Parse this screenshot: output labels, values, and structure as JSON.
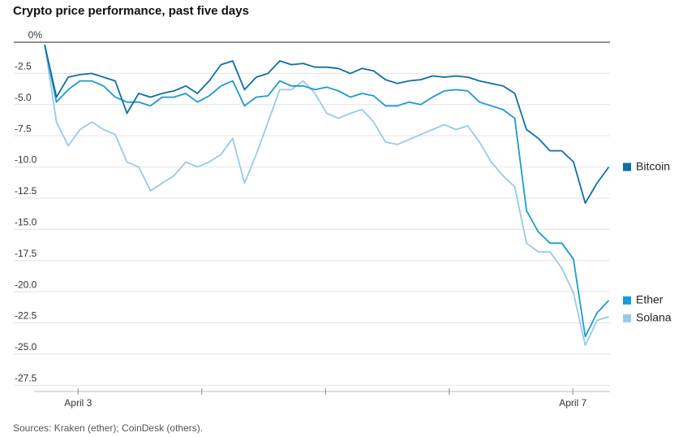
{
  "chart_data": {
    "type": "line",
    "title": "Crypto price performance, past five days",
    "source": "Sources: Kraken (ether); CoinDesk (others).",
    "x": [
      2.73,
      2.825,
      2.92,
      3.015,
      3.11,
      3.205,
      3.3,
      3.395,
      3.49,
      3.585,
      3.68,
      3.775,
      3.87,
      3.965,
      4.06,
      4.155,
      4.25,
      4.345,
      4.44,
      4.535,
      4.63,
      4.725,
      4.82,
      4.915,
      5.01,
      5.105,
      5.2,
      5.295,
      5.39,
      5.485,
      5.58,
      5.675,
      5.77,
      5.865,
      5.96,
      6.055,
      6.15,
      6.245,
      6.34,
      6.435,
      6.53,
      6.625,
      6.72,
      6.815,
      6.91,
      7.005,
      7.1,
      7.195,
      7.29
    ],
    "series": [
      {
        "name": "Bitcoin",
        "color": "#0f6fa3",
        "values": [
          -0.2,
          -4.4,
          -2.8,
          -2.6,
          -2.5,
          -2.8,
          -3.1,
          -5.7,
          -4.1,
          -4.4,
          -4.1,
          -3.9,
          -3.5,
          -4.1,
          -3.1,
          -1.8,
          -1.5,
          -3.8,
          -2.8,
          -2.5,
          -1.5,
          -1.8,
          -1.7,
          -2.0,
          -2.0,
          -2.1,
          -2.5,
          -2.1,
          -2.3,
          -3.0,
          -3.3,
          -3.1,
          -3.0,
          -2.7,
          -2.8,
          -2.7,
          -2.8,
          -3.1,
          -3.3,
          -3.5,
          -4.1,
          -7.0,
          -7.7,
          -8.7,
          -8.7,
          -9.6,
          -12.9,
          -11.3,
          -10.0
        ]
      },
      {
        "name": "Ether",
        "color": "#1a9ad6",
        "values": [
          -0.2,
          -4.8,
          -3.8,
          -3.1,
          -3.1,
          -3.5,
          -4.4,
          -4.8,
          -4.8,
          -5.1,
          -4.4,
          -4.4,
          -4.1,
          -4.8,
          -4.3,
          -3.5,
          -3.1,
          -5.1,
          -4.4,
          -4.3,
          -3.1,
          -3.5,
          -3.5,
          -3.8,
          -3.6,
          -3.9,
          -4.4,
          -4.1,
          -4.3,
          -5.1,
          -5.1,
          -4.8,
          -5.0,
          -4.4,
          -3.9,
          -3.8,
          -3.9,
          -4.8,
          -5.1,
          -5.4,
          -6.1,
          -13.5,
          -15.2,
          -16.1,
          -16.1,
          -17.4,
          -23.6,
          -21.7,
          -20.7
        ]
      },
      {
        "name": "Solana",
        "color": "#98c9ea",
        "values": [
          -0.2,
          -6.4,
          -8.3,
          -7.0,
          -6.4,
          -7.0,
          -7.4,
          -9.6,
          -10.0,
          -11.9,
          -11.3,
          -10.7,
          -9.6,
          -10.0,
          -9.6,
          -9.0,
          -7.7,
          -11.3,
          -9.0,
          -6.4,
          -3.8,
          -3.8,
          -3.1,
          -4.1,
          -5.7,
          -6.1,
          -5.7,
          -5.4,
          -6.4,
          -8.0,
          -8.2,
          -7.8,
          -7.4,
          -7.0,
          -6.6,
          -7.0,
          -6.7,
          -8.0,
          -9.6,
          -10.7,
          -11.6,
          -16.1,
          -16.8,
          -16.8,
          -18.1,
          -20.1,
          -24.3,
          -22.3,
          -22.0
        ]
      }
    ],
    "xlim": [
      2.48,
      7.3
    ],
    "xticks": [
      {
        "value": 3,
        "label": "April 3"
      },
      {
        "value": 4,
        "label": null
      },
      {
        "value": 5,
        "label": null
      },
      {
        "value": 6,
        "label": null
      },
      {
        "value": 7,
        "label": "April 7"
      }
    ],
    "ylim": [
      -28,
      0
    ],
    "yticks": [
      {
        "value": 0,
        "label": "0%"
      },
      -2.5,
      {
        "value": -5,
        "label": "-5.0"
      },
      -7.5,
      {
        "value": -10,
        "label": "-10.0"
      },
      -12.5,
      {
        "value": -15,
        "label": "-15.0"
      },
      -17.5,
      {
        "value": -20,
        "label": "-20.0"
      },
      -22.5,
      {
        "value": -25,
        "label": "-25.0"
      },
      -27.5
    ],
    "grid": true
  }
}
